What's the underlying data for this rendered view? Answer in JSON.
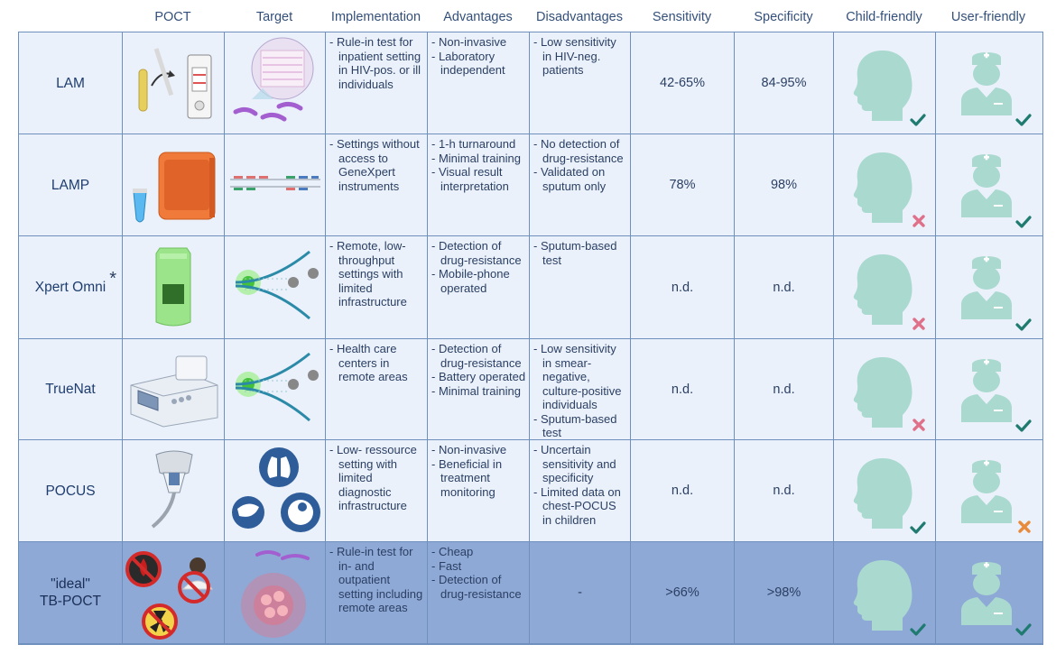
{
  "headers": [
    "POCT",
    "Target",
    "Implementation",
    "Advantages",
    "Disadvantages",
    "Sensitivity",
    "Specificity",
    "Child-friendly",
    "User-friendly"
  ],
  "rows": [
    {
      "name": "LAM",
      "implementation": [
        "Rule-in test for inpatient setting in HIV-pos. or ill individuals"
      ],
      "advantages": [
        "Non-invasive",
        "Laboratory independent"
      ],
      "disadvantages": [
        "Low sensitivity in HIV-neg. patients"
      ],
      "sensitivity": "42-65%",
      "specificity": "84-95%",
      "child_friendly": "check",
      "user_friendly": "check"
    },
    {
      "name": "LAMP",
      "implementation": [
        "Settings without access to GeneXpert instruments"
      ],
      "advantages": [
        "1-h turnaround",
        "Minimal training",
        "Visual result interpretation"
      ],
      "disadvantages": [
        "No detection of drug-resistance",
        "Validated on sputum only"
      ],
      "sensitivity": "78%",
      "specificity": "98%",
      "child_friendly": "cross",
      "user_friendly": "check"
    },
    {
      "name": "Xpert Omni",
      "marker": "*",
      "implementation": [
        "Remote, low-throughput settings with limited infrastructure"
      ],
      "advantages": [
        "Detection of drug-resistance",
        "Mobile-phone operated"
      ],
      "disadvantages": [
        "Sputum-based test"
      ],
      "sensitivity": "n.d.",
      "specificity": "n.d.",
      "child_friendly": "cross",
      "user_friendly": "check"
    },
    {
      "name": "TrueNat",
      "implementation": [
        "Health care centers in remote areas"
      ],
      "advantages": [
        "Detection of drug-resistance",
        "Battery operated",
        "Minimal training"
      ],
      "disadvantages": [
        "Low sensitivity in smear-negative, culture-positive individuals",
        "Sputum-based test"
      ],
      "sensitivity": "n.d.",
      "specificity": "n.d.",
      "child_friendly": "cross",
      "user_friendly": "check"
    },
    {
      "name": "POCUS",
      "implementation": [
        "Low- ressource setting with limited diagnostic infrastructure"
      ],
      "advantages": [
        "Non-invasive",
        "Beneficial in treatment monitoring"
      ],
      "disadvantages": [
        "Uncertain sensitivity and specificity",
        "Limited data on chest-POCUS in children"
      ],
      "sensitivity": "n.d.",
      "specificity": "n.d.",
      "child_friendly": "check",
      "user_friendly": "cross-orange"
    },
    {
      "name": "\"ideal\" TB-POCT",
      "implementation": [
        "Rule-in test for in- and outpatient setting including remote areas"
      ],
      "advantages": [
        "Cheap",
        "Fast",
        "Detection of drug-resistance"
      ],
      "disadvantages_text": "-",
      "sensitivity": ">66%",
      "specificity": ">98%",
      "child_friendly": "check",
      "user_friendly": "check"
    }
  ],
  "colors": {
    "check": "#1f7a70",
    "cross": "#e0708a",
    "cross_orange": "#e88a3c",
    "silhouette": "#a9d9cf",
    "ideal_row": "#8ea9d6",
    "cell_bg": "#eaf1fb"
  }
}
